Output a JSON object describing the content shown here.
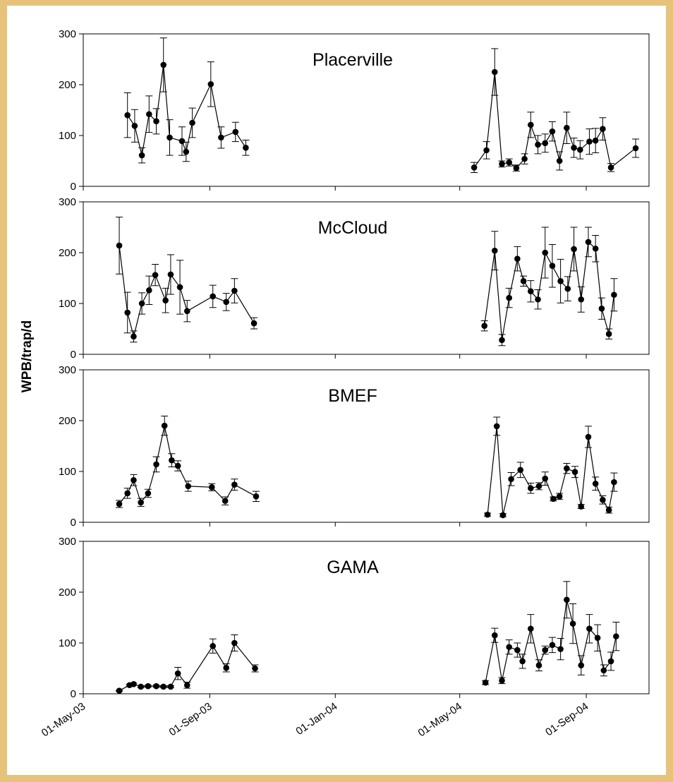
{
  "ylabel": "WPB/trap/d",
  "chart_data": [
    {
      "type": "line",
      "title": "Placerville",
      "color": "#000000",
      "x": [
        "2003-06-13",
        "2003-06-20",
        "2003-06-27",
        "2003-07-04",
        "2003-07-11",
        "2003-07-18",
        "2003-07-24",
        "2003-08-05",
        "2003-08-09",
        "2003-08-15",
        "2003-09-02",
        "2003-09-12",
        "2003-09-26",
        "2003-10-06",
        null,
        "2004-05-15",
        "2004-05-27",
        "2004-06-04",
        "2004-06-11",
        "2004-06-18",
        "2004-06-25",
        "2004-07-03",
        "2004-07-09",
        "2004-07-16",
        "2004-07-23",
        "2004-07-30",
        "2004-08-06",
        "2004-08-13",
        "2004-08-20",
        "2004-08-26",
        "2004-09-04",
        "2004-09-10",
        "2004-09-17",
        "2004-09-25",
        "2004-10-19"
      ],
      "values": [
        140,
        119,
        61,
        142,
        128,
        239,
        96,
        89,
        68,
        125,
        201,
        96,
        107,
        76,
        null,
        37,
        71,
        225,
        44,
        47,
        36,
        54,
        121,
        82,
        85,
        108,
        50,
        115,
        76,
        72,
        88,
        90,
        113,
        37,
        75
      ],
      "errors": [
        44,
        32,
        15,
        36,
        25,
        53,
        35,
        28,
        19,
        29,
        44,
        21,
        19,
        15,
        null,
        10,
        17,
        46,
        6,
        7,
        6,
        10,
        25,
        18,
        18,
        19,
        18,
        31,
        19,
        18,
        25,
        24,
        22,
        8,
        18
      ],
      "xlim": [
        "2003-05-01",
        "2004-11-01"
      ],
      "ylim": [
        0,
        300
      ],
      "yticks": [
        0,
        100,
        200,
        300
      ]
    },
    {
      "type": "line",
      "title": "McCloud",
      "color": "#000000",
      "x": [
        "2003-06-05",
        "2003-06-13",
        "2003-06-19",
        "2003-06-27",
        "2003-07-04",
        "2003-07-10",
        "2003-07-20",
        "2003-07-25",
        "2003-08-03",
        "2003-08-10",
        "2003-09-04",
        "2003-09-17",
        "2003-09-25",
        "2003-10-14",
        null,
        "2004-05-25",
        "2004-06-04",
        "2004-06-11",
        "2004-06-18",
        "2004-06-26",
        "2004-07-02",
        "2004-07-09",
        "2004-07-16",
        "2004-07-23",
        "2004-07-30",
        "2004-08-07",
        "2004-08-14",
        "2004-08-20",
        "2004-08-27",
        "2004-09-03",
        "2004-09-10",
        "2004-09-16",
        "2004-09-23",
        "2004-09-28"
      ],
      "values": [
        214,
        82,
        35,
        100,
        126,
        156,
        106,
        157,
        132,
        85,
        114,
        103,
        125,
        61,
        null,
        56,
        204,
        28,
        111,
        188,
        144,
        124,
        108,
        200,
        174,
        144,
        129,
        207,
        108,
        221,
        208,
        90,
        40,
        117
      ],
      "errors": [
        56,
        40,
        11,
        21,
        28,
        21,
        24,
        39,
        53,
        21,
        22,
        17,
        24,
        11,
        null,
        10,
        38,
        11,
        19,
        24,
        10,
        21,
        19,
        50,
        42,
        43,
        24,
        43,
        25,
        29,
        26,
        21,
        10,
        32
      ],
      "xlim": [
        "2003-05-01",
        "2004-11-01"
      ],
      "ylim": [
        0,
        300
      ],
      "yticks": [
        0,
        100,
        200,
        300
      ]
    },
    {
      "type": "line",
      "title": "BMEF",
      "color": "#000000",
      "x": [
        "2003-06-05",
        "2003-06-13",
        "2003-06-19",
        "2003-06-26",
        "2003-07-03",
        "2003-07-11",
        "2003-07-19",
        "2003-07-26",
        "2003-08-01",
        "2003-08-11",
        "2003-09-03",
        "2003-09-16",
        "2003-09-25",
        "2003-10-16",
        null,
        "2004-05-28",
        "2004-06-06",
        "2004-06-12",
        "2004-06-20",
        "2004-06-29",
        "2004-07-09",
        "2004-07-17",
        "2004-07-23",
        "2004-07-31",
        "2004-08-06",
        "2004-08-13",
        "2004-08-21",
        "2004-08-27",
        "2004-09-03",
        "2004-09-10",
        "2004-09-17",
        "2004-09-23",
        "2004-09-28"
      ],
      "values": [
        36,
        57,
        83,
        39,
        57,
        114,
        190,
        122,
        111,
        71,
        69,
        42,
        74,
        51,
        null,
        15,
        189,
        14,
        85,
        103,
        67,
        71,
        86,
        46,
        51,
        106,
        99,
        31,
        168,
        76,
        44,
        24,
        79
      ],
      "errors": [
        7,
        10,
        11,
        8,
        8,
        15,
        19,
        13,
        10,
        10,
        7,
        8,
        11,
        10,
        null,
        3,
        18,
        3,
        13,
        15,
        10,
        7,
        13,
        4,
        6,
        10,
        11,
        4,
        21,
        13,
        8,
        6,
        18
      ],
      "xlim": [
        "2003-05-01",
        "2004-11-01"
      ],
      "ylim": [
        0,
        300
      ],
      "yticks": [
        0,
        100,
        200,
        300
      ]
    },
    {
      "type": "line",
      "title": "GAMA",
      "color": "#000000",
      "x": [
        "2003-06-05",
        "2003-06-15",
        "2003-06-19",
        "2003-06-26",
        "2003-07-03",
        "2003-07-11",
        "2003-07-18",
        "2003-07-25",
        "2003-08-01",
        "2003-08-10",
        "2003-09-04",
        "2003-09-17",
        "2003-09-25",
        "2003-10-15",
        null,
        "2004-05-26",
        "2004-06-04",
        "2004-06-11",
        "2004-06-18",
        "2004-06-26",
        "2004-07-01",
        "2004-07-09",
        "2004-07-17",
        "2004-07-23",
        "2004-07-30",
        "2004-08-07",
        "2004-08-13",
        "2004-08-19",
        "2004-08-27",
        "2004-09-04",
        "2004-09-12",
        "2004-09-18",
        "2004-09-25",
        "2004-09-30"
      ],
      "values": [
        6,
        17,
        19,
        14,
        15,
        15,
        14,
        14,
        40,
        17,
        94,
        51,
        100,
        50,
        null,
        22,
        115,
        26,
        92,
        86,
        64,
        128,
        56,
        86,
        96,
        88,
        185,
        138,
        56,
        128,
        110,
        46,
        64,
        113
      ],
      "errors": [
        1,
        2,
        2,
        2,
        2,
        2,
        2,
        2,
        12,
        6,
        14,
        8,
        16,
        7,
        null,
        4,
        14,
        6,
        14,
        14,
        14,
        28,
        11,
        8,
        15,
        21,
        36,
        39,
        19,
        28,
        26,
        11,
        18,
        28
      ],
      "xlim": [
        "2003-05-01",
        "2004-11-01"
      ],
      "ylim": [
        0,
        300
      ],
      "yticks": [
        0,
        100,
        200,
        300
      ],
      "xticks": [
        {
          "value": "2003-05-01",
          "label": "01-May-03"
        },
        {
          "value": "2003-09-01",
          "label": "01-Sep-03"
        },
        {
          "value": "2004-01-01",
          "label": "01-Jan-04"
        },
        {
          "value": "2004-05-01",
          "label": "01-May-04"
        },
        {
          "value": "2004-09-01",
          "label": "01-Sep-04"
        }
      ]
    }
  ]
}
